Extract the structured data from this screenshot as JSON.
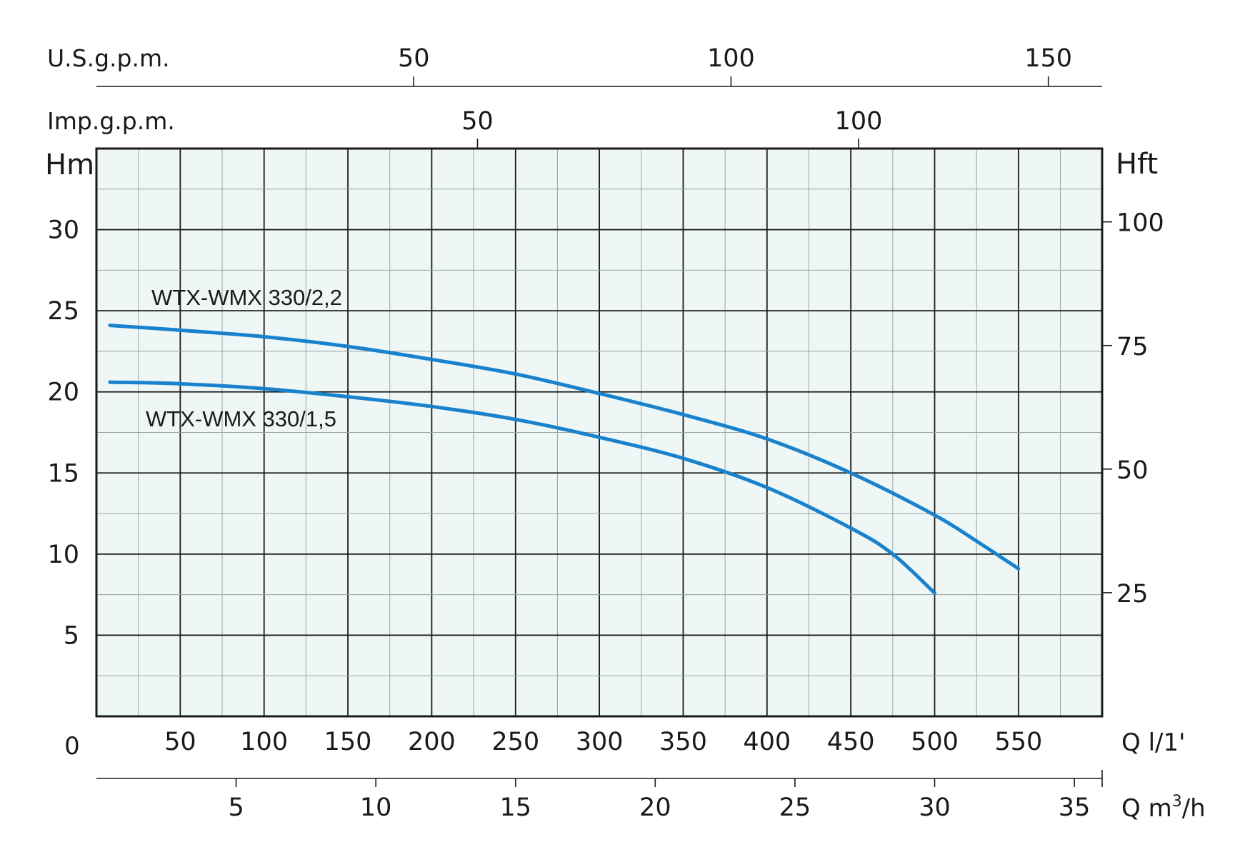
{
  "chart_data": {
    "type": "line",
    "plot_background": "#eef7f6",
    "curve_color": "#1a82cc",
    "grid": true,
    "axes": {
      "bottom_primary": {
        "unit_label": "Q l/1'",
        "origin_label": "0",
        "range": [
          0,
          600
        ],
        "ticks": [
          50,
          100,
          150,
          200,
          250,
          300,
          350,
          400,
          450,
          500,
          550
        ],
        "tick_labels": [
          "50",
          "100",
          "150",
          "200",
          "250",
          "300",
          "350",
          "400",
          "450",
          "500",
          "550"
        ]
      },
      "bottom_secondary": {
        "unit_label_main": "Q m",
        "unit_label_sup": "3",
        "unit_label_tail": "/h",
        "range": [
          0,
          36
        ],
        "ticks": [
          5,
          10,
          15,
          20,
          25,
          30,
          35
        ],
        "tick_labels": [
          "5",
          "10",
          "15",
          "20",
          "25",
          "30",
          "35"
        ]
      },
      "top_usgpm": {
        "unit_label": "U.S.g.p.m.",
        "range": [
          0,
          158.5
        ],
        "ticks": [
          50,
          100,
          150
        ],
        "tick_labels": [
          "50",
          "100",
          "150"
        ]
      },
      "top_impgpm": {
        "unit_label": "Imp.g.p.m.",
        "range": [
          0,
          132
        ],
        "ticks": [
          50,
          100
        ],
        "tick_labels": [
          "50",
          "100"
        ]
      },
      "left": {
        "unit_label": "Hm",
        "range": [
          0,
          35
        ],
        "ticks": [
          5,
          10,
          15,
          20,
          25,
          30
        ],
        "tick_labels": [
          "5",
          "10",
          "15",
          "20",
          "25",
          "30"
        ]
      },
      "right": {
        "unit_label": "Hft",
        "range": [
          0,
          114.8
        ],
        "ticks": [
          25,
          50,
          75,
          100
        ],
        "tick_labels": [
          "25",
          "50",
          "75",
          "100"
        ]
      }
    },
    "series": [
      {
        "name": "WTX-WMX 330/2,2",
        "points": [
          [
            8,
            24.1
          ],
          [
            50,
            23.8
          ],
          [
            100,
            23.4
          ],
          [
            150,
            22.8
          ],
          [
            200,
            22.0
          ],
          [
            250,
            21.1
          ],
          [
            300,
            19.9
          ],
          [
            350,
            18.6
          ],
          [
            400,
            17.1
          ],
          [
            450,
            15.0
          ],
          [
            500,
            12.4
          ],
          [
            525,
            10.8
          ],
          [
            550,
            9.1
          ]
        ]
      },
      {
        "name": "WTX-WMX 330/1,5",
        "points": [
          [
            8,
            20.6
          ],
          [
            50,
            20.5
          ],
          [
            100,
            20.2
          ],
          [
            150,
            19.7
          ],
          [
            200,
            19.1
          ],
          [
            250,
            18.3
          ],
          [
            300,
            17.2
          ],
          [
            350,
            15.9
          ],
          [
            400,
            14.1
          ],
          [
            450,
            11.6
          ],
          [
            475,
            10.0
          ],
          [
            500,
            7.6
          ]
        ]
      }
    ]
  }
}
